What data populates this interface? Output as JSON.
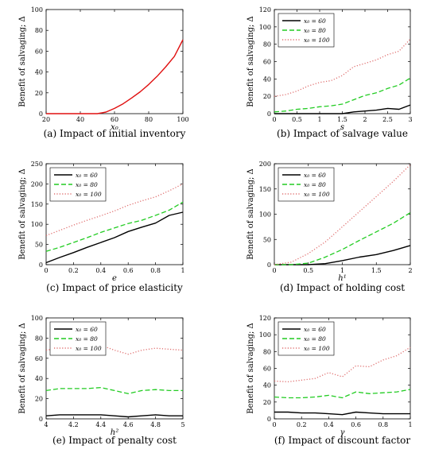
{
  "chart_data": [
    {
      "type": "line",
      "ylabel": "Benefit of salvaging; Δ",
      "xlabel": "x₀",
      "caption": "(a)  Impact of initial inventory",
      "xlim": [
        20,
        100
      ],
      "ylim": [
        0,
        100
      ],
      "xticks": [
        "20",
        "40",
        "60",
        "80",
        "100"
      ],
      "yticks": [
        "0",
        "20",
        "40",
        "60",
        "80",
        "100"
      ],
      "series": [
        {
          "color": "#e01010",
          "style": "solid",
          "x": [
            20,
            30,
            40,
            45,
            50,
            55,
            60,
            65,
            70,
            75,
            80,
            85,
            90,
            95,
            100
          ],
          "y": [
            0,
            0,
            0,
            0,
            0,
            1.5,
            5,
            9.5,
            15,
            21,
            28,
            36,
            45,
            55,
            71
          ]
        }
      ]
    },
    {
      "type": "line",
      "ylabel": "Benefit of salvaging; Δ",
      "xlabel": "s",
      "caption": "(b)  Impact of salvage value",
      "xlim": [
        0,
        3
      ],
      "ylim": [
        0,
        120
      ],
      "xticks": [
        "0",
        "0.5",
        "1",
        "1.5",
        "2",
        "2.5",
        "3"
      ],
      "yticks": [
        "0",
        "20",
        "40",
        "60",
        "80",
        "100",
        "120"
      ],
      "legend": {
        "position": "top-left",
        "labels": [
          "x₀ = 60",
          "x₀ = 80",
          "x₀ = 100"
        ]
      },
      "series": [
        {
          "name": "x₀ = 60",
          "color": "#000000",
          "style": "solid",
          "x": [
            0,
            0.25,
            0.5,
            0.75,
            1,
            1.25,
            1.5,
            1.75,
            2,
            2.25,
            2.5,
            2.75,
            3
          ],
          "y": [
            0,
            0,
            0,
            0,
            0,
            0,
            0,
            2,
            3,
            4,
            6,
            5,
            10
          ]
        },
        {
          "name": "x₀ = 80",
          "color": "#22cc22",
          "style": "dashed",
          "x": [
            0,
            0.25,
            0.5,
            0.75,
            1,
            1.25,
            1.5,
            1.75,
            2,
            2.25,
            2.5,
            2.75,
            3
          ],
          "y": [
            2,
            3,
            5,
            6,
            8,
            9,
            11,
            16,
            21,
            24,
            29,
            33,
            41
          ]
        },
        {
          "name": "x₀ = 100",
          "color": "#e07070",
          "style": "dotted",
          "x": [
            0,
            0.25,
            0.5,
            0.75,
            1,
            1.25,
            1.5,
            1.75,
            2,
            2.25,
            2.5,
            2.75,
            3
          ],
          "y": [
            20,
            22,
            26,
            32,
            36,
            38,
            44,
            54,
            58,
            62,
            68,
            72,
            86
          ]
        }
      ]
    },
    {
      "type": "line",
      "ylabel": "Benefit of salvaging; Δ",
      "xlabel": "e",
      "caption": "(c)  Impact of price elasticity",
      "xlim": [
        0,
        1
      ],
      "ylim": [
        0,
        250
      ],
      "xticks": [
        "0",
        "0.2",
        "0.4",
        "0.6",
        "0.8",
        "1"
      ],
      "yticks": [
        "0",
        "50",
        "100",
        "150",
        "200",
        "250"
      ],
      "legend": {
        "position": "top-left",
        "labels": [
          "x₀ = 60",
          "x₀ = 80",
          "x₀ = 100"
        ]
      },
      "series": [
        {
          "name": "x₀ = 60",
          "color": "#000000",
          "style": "solid",
          "x": [
            0,
            0.1,
            0.2,
            0.3,
            0.4,
            0.5,
            0.6,
            0.7,
            0.8,
            0.9,
            1
          ],
          "y": [
            5,
            18,
            30,
            43,
            55,
            67,
            82,
            93,
            103,
            122,
            130
          ]
        },
        {
          "name": "x₀ = 80",
          "color": "#22cc22",
          "style": "dashed",
          "x": [
            0,
            0.1,
            0.2,
            0.3,
            0.4,
            0.5,
            0.6,
            0.7,
            0.8,
            0.9,
            1
          ],
          "y": [
            33,
            43,
            55,
            67,
            80,
            91,
            102,
            110,
            122,
            135,
            155
          ]
        },
        {
          "name": "x₀ = 100",
          "color": "#e07070",
          "style": "dotted",
          "x": [
            0,
            0.1,
            0.2,
            0.3,
            0.4,
            0.5,
            0.6,
            0.7,
            0.8,
            0.9,
            1
          ],
          "y": [
            72,
            85,
            98,
            110,
            121,
            133,
            147,
            158,
            168,
            183,
            200
          ]
        }
      ]
    },
    {
      "type": "line",
      "ylabel": "Benefit of salvaging; Δ",
      "xlabel": "h¹",
      "caption": "(d)  Impact of holding cost",
      "xlim": [
        0,
        2
      ],
      "ylim": [
        0,
        200
      ],
      "xticks": [
        "0",
        "0.5",
        "1",
        "1.5",
        "2"
      ],
      "yticks": [
        "0",
        "50",
        "100",
        "150",
        "200"
      ],
      "legend": {
        "position": "top-left",
        "labels": [
          "x₀ = 60",
          "x₀ = 80",
          "x₀ = 100"
        ]
      },
      "series": [
        {
          "name": "x₀ = 60",
          "color": "#000000",
          "style": "solid",
          "x": [
            0,
            0.25,
            0.5,
            0.75,
            1,
            1.25,
            1.5,
            1.75,
            2
          ],
          "y": [
            0,
            0,
            0,
            2,
            8,
            15,
            20,
            28,
            38
          ]
        },
        {
          "name": "x₀ = 80",
          "color": "#22cc22",
          "style": "dashed",
          "x": [
            0,
            0.25,
            0.5,
            0.75,
            1,
            1.25,
            1.5,
            1.75,
            2
          ],
          "y": [
            0,
            0,
            3,
            15,
            30,
            48,
            65,
            82,
            103
          ]
        },
        {
          "name": "x₀ = 100",
          "color": "#e07070",
          "style": "dotted",
          "x": [
            0,
            0.25,
            0.5,
            0.75,
            1,
            1.25,
            1.5,
            1.75,
            2
          ],
          "y": [
            0,
            5,
            22,
            45,
            75,
            105,
            135,
            165,
            198
          ]
        }
      ]
    },
    {
      "type": "line",
      "ylabel": "Benefit of salvaging; Δ",
      "xlabel": "h²",
      "caption": "(e)  Impact of penalty cost",
      "xlim": [
        4,
        5
      ],
      "ylim": [
        0,
        100
      ],
      "xticks": [
        "4",
        "4.2",
        "4.4",
        "4.6",
        "4.8",
        "5"
      ],
      "yticks": [
        "0",
        "20",
        "40",
        "60",
        "80",
        "100"
      ],
      "legend": {
        "position": "top-left",
        "labels": [
          "x₀ = 60",
          "x₀ = 80",
          "x₀ = 100"
        ]
      },
      "series": [
        {
          "name": "x₀ = 60",
          "color": "#000000",
          "style": "solid",
          "x": [
            4,
            4.1,
            4.2,
            4.3,
            4.4,
            4.5,
            4.6,
            4.7,
            4.8,
            4.9,
            5
          ],
          "y": [
            3,
            4,
            4,
            4,
            4,
            3,
            2,
            3,
            4,
            3,
            3
          ]
        },
        {
          "name": "x₀ = 80",
          "color": "#22cc22",
          "style": "dashed",
          "x": [
            4,
            4.1,
            4.2,
            4.3,
            4.4,
            4.5,
            4.6,
            4.7,
            4.8,
            4.9,
            5
          ],
          "y": [
            28,
            30,
            30,
            30,
            31,
            28,
            25,
            28,
            29,
            28,
            28
          ]
        },
        {
          "name": "x₀ = 100",
          "color": "#e07070",
          "style": "dotted",
          "x": [
            4,
            4.1,
            4.2,
            4.3,
            4.4,
            4.5,
            4.6,
            4.7,
            4.8,
            4.9,
            5
          ],
          "y": [
            68,
            70,
            72,
            70,
            73,
            68,
            64,
            68,
            70,
            69,
            68
          ]
        }
      ]
    },
    {
      "type": "line",
      "ylabel": "Benefit of salvaging; Δ",
      "xlabel": "γ",
      "caption": "(f)  Impact of discount factor",
      "xlim": [
        0,
        1
      ],
      "ylim": [
        0,
        120
      ],
      "xticks": [
        "0",
        "0.2",
        "0.4",
        "0.6",
        "0.8",
        "1"
      ],
      "yticks": [
        "0",
        "20",
        "40",
        "60",
        "80",
        "100",
        "120"
      ],
      "legend": {
        "position": "top-left",
        "labels": [
          "x₀ = 60",
          "x₀ = 80",
          "x₀ = 100"
        ]
      },
      "series": [
        {
          "name": "x₀ = 60",
          "color": "#000000",
          "style": "solid",
          "x": [
            0,
            0.1,
            0.2,
            0.3,
            0.4,
            0.5,
            0.6,
            0.7,
            0.8,
            0.9,
            1
          ],
          "y": [
            8,
            8,
            7,
            7,
            6,
            5,
            8,
            7,
            6,
            6,
            6
          ]
        },
        {
          "name": "x₀ = 80",
          "color": "#22cc22",
          "style": "dashed",
          "x": [
            0,
            0.1,
            0.2,
            0.3,
            0.4,
            0.5,
            0.6,
            0.7,
            0.8,
            0.9,
            1
          ],
          "y": [
            26,
            25,
            25,
            26,
            28,
            25,
            32,
            30,
            31,
            32,
            35
          ]
        },
        {
          "name": "x₀ = 100",
          "color": "#e07070",
          "style": "dotted",
          "x": [
            0,
            0.1,
            0.2,
            0.3,
            0.4,
            0.5,
            0.6,
            0.7,
            0.8,
            0.9,
            1
          ],
          "y": [
            45,
            44,
            46,
            48,
            55,
            50,
            63,
            62,
            70,
            75,
            85
          ]
        }
      ]
    }
  ]
}
